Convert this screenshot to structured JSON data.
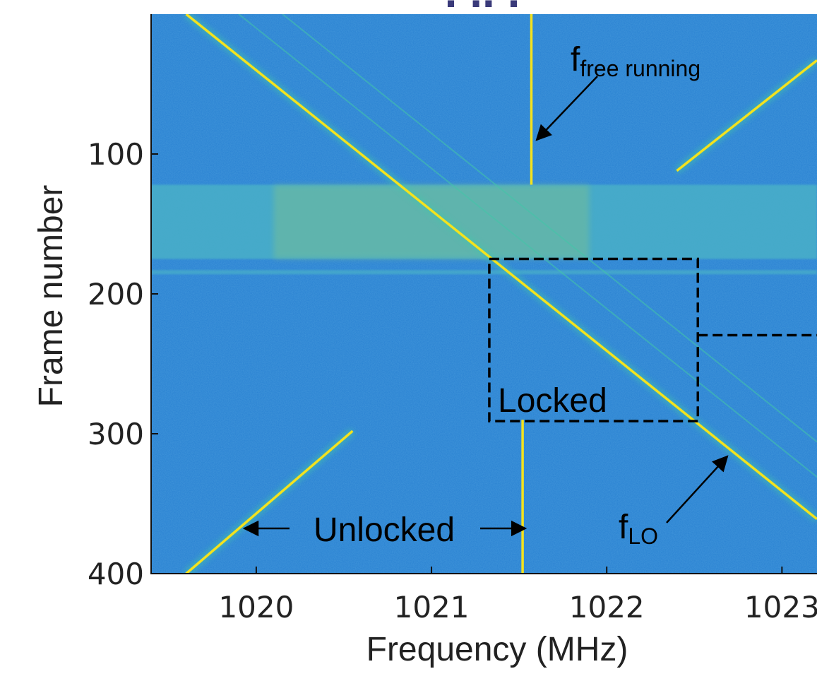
{
  "chart_data": {
    "type": "heatmap",
    "title": "",
    "xlabel": "Frequency (MHz)",
    "ylabel": "Frame number",
    "xlim": [
      1019.4,
      1023.2
    ],
    "ylim": [
      400,
      0
    ],
    "xticks": [
      1020,
      1021,
      1022,
      1023
    ],
    "xtick_labels": [
      "1020",
      "1021",
      "1022",
      "1023"
    ],
    "yticks": [
      100,
      200,
      300,
      400
    ],
    "ytick_labels": [
      "100",
      "200",
      "300",
      "400"
    ],
    "colormap": "parula",
    "grid": false,
    "traces": [
      {
        "name": "free-running",
        "x": [
          1021.57,
          1021.57
        ],
        "y": [
          0,
          122
        ]
      },
      {
        "name": "LO sweep",
        "x": [
          1019.6,
          1023.2
        ],
        "y": [
          0,
          361
        ]
      },
      {
        "name": "free-running",
        "x": [
          1021.52,
          1021.52
        ],
        "y": [
          290,
          400
        ]
      },
      {
        "name": "mirror image",
        "x": [
          1019.6,
          1020.55
        ],
        "y": [
          400,
          298
        ]
      },
      {
        "name": "mirror image",
        "x": [
          1022.4,
          1023.2
        ],
        "y": [
          112,
          33
        ]
      }
    ],
    "bands": [
      {
        "y": [
          122,
          175
        ],
        "level": "elevated"
      },
      {
        "y": [
          183,
          186
        ],
        "level": "elevated"
      }
    ],
    "regions": [
      {
        "name": "locked-region",
        "x": [
          1021.33,
          1022.52
        ],
        "y": [
          175,
          291
        ]
      }
    ],
    "annotations": [
      {
        "id": "free_running",
        "text_main": "f",
        "text_sub": "free running"
      },
      {
        "id": "lo",
        "text_main": "f",
        "text_sub": "LO"
      },
      {
        "id": "locked",
        "text": "Locked"
      },
      {
        "id": "unlocked",
        "text": "Unlocked"
      }
    ]
  },
  "colors": {
    "background": "#2a82d2",
    "band": "#4ab0c8",
    "trace_core": "#f4e21e",
    "trace_glow": "#43c6a8",
    "annotation": "#000000",
    "axis_text": "#222222",
    "top_title_fragment": "#3a3a7a"
  }
}
